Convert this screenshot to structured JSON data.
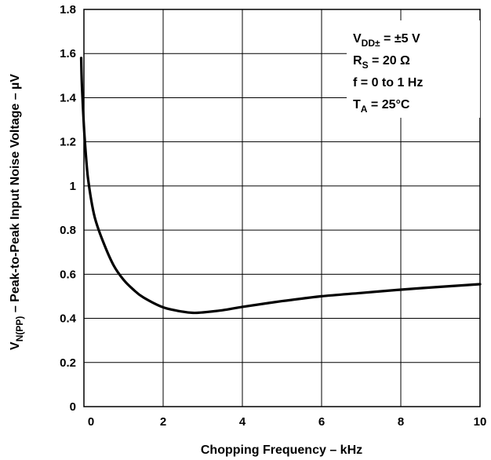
{
  "chart_data": {
    "type": "line",
    "xlabel": "Chopping Frequency – kHz",
    "ylabel": {
      "prefix": "V",
      "sub": "N(PP)",
      "rest": " – Peak-to-Peak Input Noise Voltage – µV"
    },
    "xlim": [
      0,
      10
    ],
    "ylim": [
      0,
      1.8
    ],
    "x_ticks": [
      "0",
      "2",
      "4",
      "6",
      "8",
      "10"
    ],
    "y_ticks": [
      "0",
      "0.2",
      "0.4",
      "0.6",
      "0.8",
      "1",
      "1.2",
      "1.4",
      "1.6",
      "1.8"
    ],
    "grid": true,
    "annotations": [
      {
        "main": "V",
        "sub": "DD±",
        "rest": " = ±5 V"
      },
      {
        "main": "R",
        "sub": "S",
        "rest": " = 20 Ω"
      },
      {
        "main": "f = 0 to 1 Hz",
        "sub": "",
        "rest": ""
      },
      {
        "main": "T",
        "sub": "A",
        "rest": " = 25°C"
      }
    ],
    "series": [
      {
        "x": [
          -0.07,
          -0.05,
          0.0,
          0.05,
          0.1,
          0.2,
          0.3,
          0.5,
          0.75,
          1.0,
          1.25,
          1.5,
          2.0,
          2.5,
          2.75,
          3.0,
          3.5,
          4.0,
          5.0,
          6.0,
          7.0,
          8.0,
          9.0,
          10.0
        ],
        "y": [
          1.58,
          1.45,
          1.27,
          1.14,
          1.04,
          0.92,
          0.84,
          0.74,
          0.64,
          0.575,
          0.53,
          0.495,
          0.45,
          0.43,
          0.425,
          0.427,
          0.437,
          0.452,
          0.478,
          0.5,
          0.515,
          0.53,
          0.543,
          0.555
        ]
      }
    ]
  }
}
